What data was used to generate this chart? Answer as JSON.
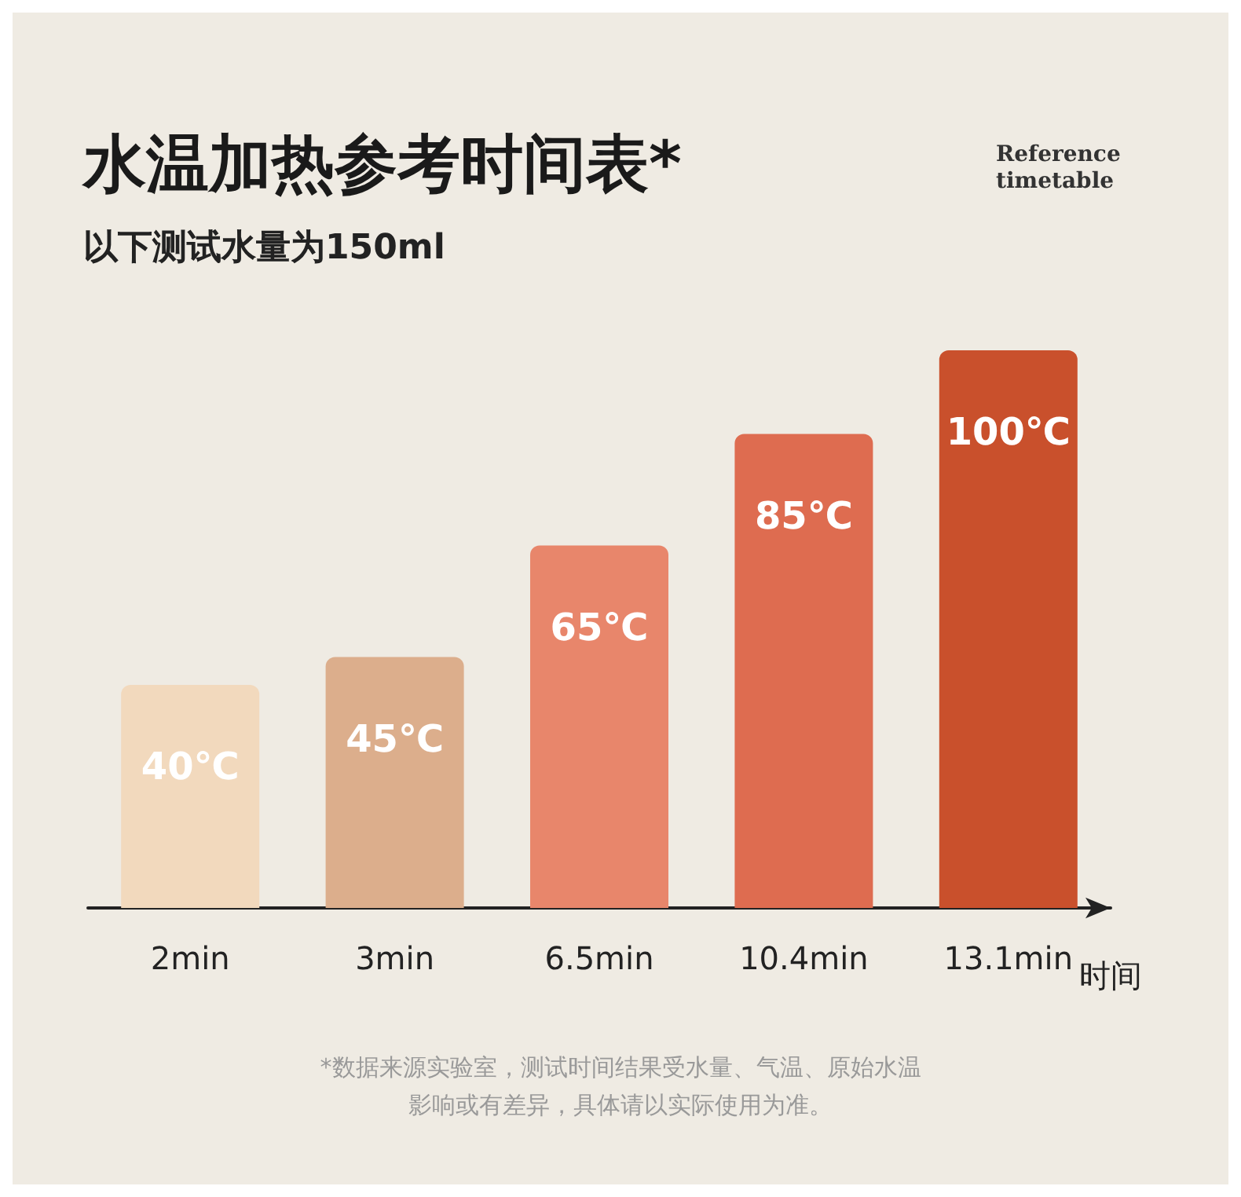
{
  "chart_data": {
    "type": "bar",
    "title": "水温加热参考时间表*",
    "subtitle": "以下测试水量为150ml",
    "xlabel": "时间",
    "categories": [
      "2min",
      "3min",
      "6.5min",
      "10.4min",
      "13.1min"
    ],
    "values": [
      40,
      45,
      65,
      85,
      100
    ],
    "annotations": [
      "Reference timetable",
      "*数据来源实验室，测试时间结果受水量、气温、原始水温",
      "影响或有差异，具体请以实际使用为准。"
    ],
    "value_labels": [
      "40℃",
      "45℃",
      "65℃",
      "85℃",
      "100℃"
    ],
    "colors": [
      "#f2d9bd",
      "#dcae8c",
      "#e8866b",
      "#de6c50",
      "#c9502c"
    ]
  }
}
